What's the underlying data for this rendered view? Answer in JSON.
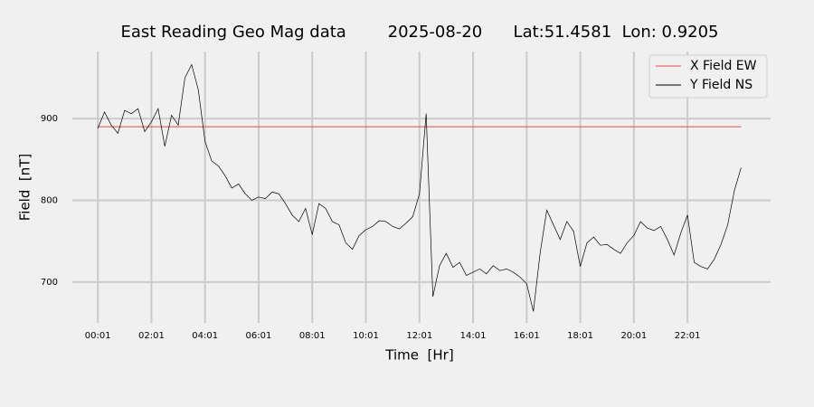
{
  "chart_data": {
    "type": "line",
    "title": "East Reading Geo Mag data        2025-08-20      Lat:51.4581  Lon: 0.9205",
    "x_label": "Time  [Hr]",
    "y_label": "Field  [nT]",
    "x": [
      1,
      16,
      31,
      46,
      61,
      76,
      91,
      106,
      121,
      136,
      151,
      166,
      181,
      196,
      211,
      226,
      241,
      256,
      271,
      286,
      301,
      316,
      331,
      346,
      361,
      376,
      391,
      406,
      421,
      436,
      451,
      466,
      481,
      496,
      511,
      526,
      541,
      556,
      571,
      586,
      601,
      616,
      631,
      646,
      661,
      676,
      691,
      706,
      721,
      736,
      751,
      766,
      781,
      796,
      811,
      826,
      841,
      856,
      871,
      886,
      901,
      916,
      931,
      946,
      961,
      976,
      991,
      1006,
      1021,
      1036,
      1051,
      1066,
      1081,
      1096,
      1111,
      1126,
      1141,
      1156,
      1171,
      1186,
      1201,
      1216,
      1231,
      1246,
      1261,
      1276,
      1291,
      1306,
      1321,
      1336,
      1351,
      1366,
      1381,
      1396,
      1411,
      1426,
      1441
    ],
    "series": [
      {
        "name": "X Field EW",
        "color": "#e8474b",
        "values": [
          890,
          890,
          890,
          890,
          890,
          890,
          890,
          890,
          890,
          890,
          890,
          890,
          890,
          890,
          890,
          890,
          890,
          890,
          890,
          890,
          890,
          890,
          890,
          890,
          890,
          890,
          890,
          890,
          890,
          890,
          890,
          890,
          890,
          890,
          890,
          890,
          890,
          890,
          890,
          890,
          890,
          890,
          890,
          890,
          890,
          890,
          890,
          890,
          890,
          890,
          890,
          890,
          890,
          890,
          890,
          890,
          890,
          890,
          890,
          890,
          890,
          890,
          890,
          890,
          890,
          890,
          890,
          890,
          890,
          890,
          890,
          890,
          890,
          890,
          890,
          890,
          890,
          890,
          890,
          890,
          890,
          890,
          890,
          890,
          890,
          890,
          890,
          890,
          890,
          890,
          890,
          890,
          890,
          890,
          890,
          890,
          890
        ]
      },
      {
        "name": "Y Field NS",
        "color": "#000000",
        "values": [
          888,
          908,
          892,
          882,
          910,
          906,
          912,
          884,
          896,
          912,
          866,
          904,
          892,
          950,
          966,
          935,
          872,
          848,
          842,
          830,
          815,
          820,
          808,
          800,
          804,
          802,
          810,
          808,
          796,
          782,
          774,
          790,
          758,
          796,
          790,
          774,
          770,
          748,
          740,
          757,
          764,
          768,
          775,
          774,
          768,
          765,
          772,
          780,
          808,
          906,
          682,
          720,
          735,
          718,
          724,
          708,
          712,
          716,
          710,
          720,
          714,
          716,
          712,
          706,
          698,
          664,
          735,
          788,
          770,
          752,
          774,
          762,
          719,
          748,
          755,
          745,
          746,
          740,
          735,
          748,
          757,
          774,
          766,
          763,
          768,
          752,
          733,
          760,
          782,
          724,
          719,
          716,
          728,
          746,
          770,
          812,
          840
        ]
      }
    ],
    "xlim": [
      -56,
      1507
    ],
    "xticks": [
      {
        "value": 1,
        "label": "00:01"
      },
      {
        "value": 121,
        "label": "02:01"
      },
      {
        "value": 241,
        "label": "04:01"
      },
      {
        "value": 361,
        "label": "06:01"
      },
      {
        "value": 481,
        "label": "08:01"
      },
      {
        "value": 601,
        "label": "10:01"
      },
      {
        "value": 721,
        "label": "12:01"
      },
      {
        "value": 841,
        "label": "14:01"
      },
      {
        "value": 961,
        "label": "16:01"
      },
      {
        "value": 1081,
        "label": "18:01"
      },
      {
        "value": 1201,
        "label": "20:01"
      },
      {
        "value": 1321,
        "label": "22:01"
      }
    ],
    "ylim": [
      650,
      982
    ],
    "yticks": [
      700,
      800,
      900
    ],
    "grid": true,
    "legend": "upper right"
  }
}
